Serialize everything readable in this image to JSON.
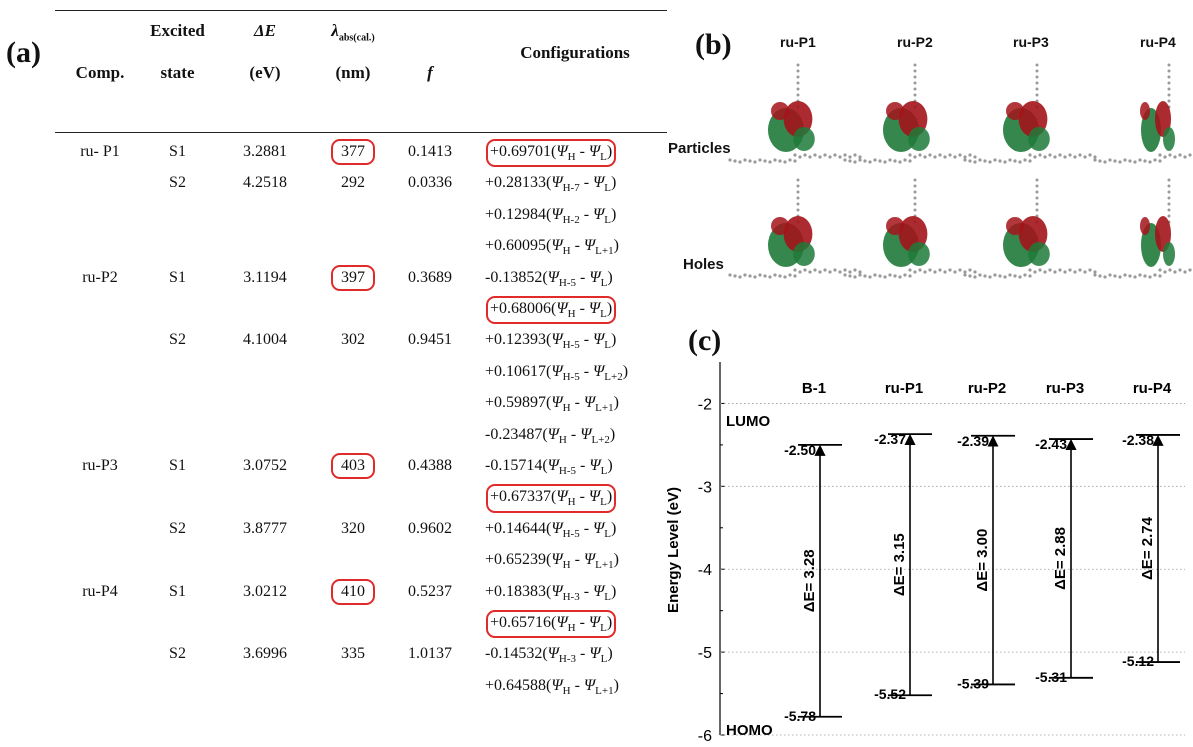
{
  "panel_a": {
    "label": "(a)",
    "headers": {
      "comp": "Comp.",
      "excited_1": "Excited",
      "excited_2": "state",
      "de_1": "ΔE",
      "de_2": "(eV)",
      "lam_1": "λ",
      "lam_sub": "abs(cal.)",
      "lam_2": "(nm)",
      "f": "f",
      "config": "Configurations"
    },
    "rows": [
      {
        "comp": "ru- P1",
        "state": "S1",
        "de": "3.2881",
        "lam": "377",
        "f": "0.1413",
        "configs": [
          {
            "c": "+0.69701",
            "h": "H",
            "l": "L",
            "boxed": true
          }
        ]
      },
      {
        "comp": "",
        "state": "S2",
        "de": "4.2518",
        "lam": "292",
        "f": "0.0336",
        "configs": [
          {
            "c": "+0.28133",
            "h": "H-7",
            "l": "L"
          },
          {
            "c": "+0.12984",
            "h": "H-2",
            "l": "L"
          },
          {
            "c": "+0.60095",
            "h": "H",
            "l": "L+1"
          }
        ]
      },
      {
        "comp": "ru-P2",
        "state": "S1",
        "de": "3.1194",
        "lam": "397",
        "f": "0.3689",
        "configs": [
          {
            "c": "-0.13852",
            "h": "H-5",
            "l": "L"
          },
          {
            "c": "+0.68006",
            "h": "H",
            "l": "L",
            "boxed": true
          }
        ]
      },
      {
        "comp": "",
        "state": "S2",
        "de": "4.1004",
        "lam": "302",
        "f": "0.9451",
        "configs": [
          {
            "c": "+0.12393",
            "h": "H-5",
            "l": "L"
          },
          {
            "c": "+0.10617",
            "h": "H-5",
            "l": "L+2"
          },
          {
            "c": "+0.59897",
            "h": "H",
            "l": "L+1"
          },
          {
            "c": "-0.23487",
            "h": "H",
            "l": "L+2"
          }
        ]
      },
      {
        "comp": "ru-P3",
        "state": "S1",
        "de": "3.0752",
        "lam": "403",
        "f": "0.4388",
        "configs": [
          {
            "c": "-0.15714",
            "h": "H-5",
            "l": "L"
          },
          {
            "c": "+0.67337",
            "h": "H",
            "l": "L",
            "boxed": true
          }
        ]
      },
      {
        "comp": "",
        "state": "S2",
        "de": "3.8777",
        "lam": "320",
        "f": "0.9602",
        "configs": [
          {
            "c": "+0.14644",
            "h": "H-5",
            "l": "L"
          },
          {
            "c": "+0.65239",
            "h": "H",
            "l": "L+1"
          }
        ]
      },
      {
        "comp": "ru-P4",
        "state": "S1",
        "de": "3.0212",
        "lam": "410",
        "f": "0.5237",
        "configs": [
          {
            "c": "+0.18383",
            "h": "H-3",
            "l": "L"
          },
          {
            "c": "+0.65716",
            "h": "H",
            "l": "L",
            "boxed": true
          }
        ]
      },
      {
        "comp": "",
        "state": "S2",
        "de": "3.6996",
        "lam": "335",
        "f": "1.0137",
        "configs": [
          {
            "c": "-0.14532",
            "h": "H-3",
            "l": "L"
          },
          {
            "c": "+0.64588",
            "h": "H",
            "l": "L+1"
          }
        ]
      }
    ],
    "boxed_lambda": [
      "377",
      "397",
      "403",
      "410"
    ],
    "psi_symbol": "Ψ"
  },
  "panel_b": {
    "label": "(b)",
    "molecules": [
      "ru-P1",
      "ru-P2",
      "ru-P3",
      "ru-P4"
    ],
    "row_labels": [
      "Particles",
      "Holes"
    ]
  },
  "panel_c": {
    "label": "(c)",
    "chart_data": {
      "type": "energy-level",
      "ylabel": "Energy Level (eV)",
      "ylim": [
        -6,
        -1.5
      ],
      "yticks": [
        -6,
        -5,
        -4,
        -3,
        -2
      ],
      "lumo_label": "LUMO",
      "homo_label": "HOMO",
      "categories": [
        "B-1",
        "ru-P1",
        "ru-P2",
        "ru-P3",
        "ru-P4"
      ],
      "lumo": [
        -2.5,
        -2.37,
        -2.39,
        -2.43,
        -2.38
      ],
      "homo": [
        -5.78,
        -5.52,
        -5.39,
        -5.31,
        -5.12
      ],
      "lumo_labels": [
        "-2.50",
        "-2.37",
        "-2.39",
        "-2.43",
        "-2.38"
      ],
      "homo_labels": [
        "-5.78",
        "-5.52",
        "-5.39",
        "-5.31",
        "-5.12"
      ],
      "gap_labels": [
        "ΔE= 3.28",
        "ΔE= 3.15",
        "ΔE= 3.00",
        "ΔE= 2.88",
        "ΔE= 2.74"
      ],
      "grid": "dotted"
    }
  },
  "colors": {
    "box": "#e02b2b",
    "orbital_green": "#1f7a3a",
    "orbital_red": "#a3141b",
    "atom_gray": "#9a9a9a"
  }
}
